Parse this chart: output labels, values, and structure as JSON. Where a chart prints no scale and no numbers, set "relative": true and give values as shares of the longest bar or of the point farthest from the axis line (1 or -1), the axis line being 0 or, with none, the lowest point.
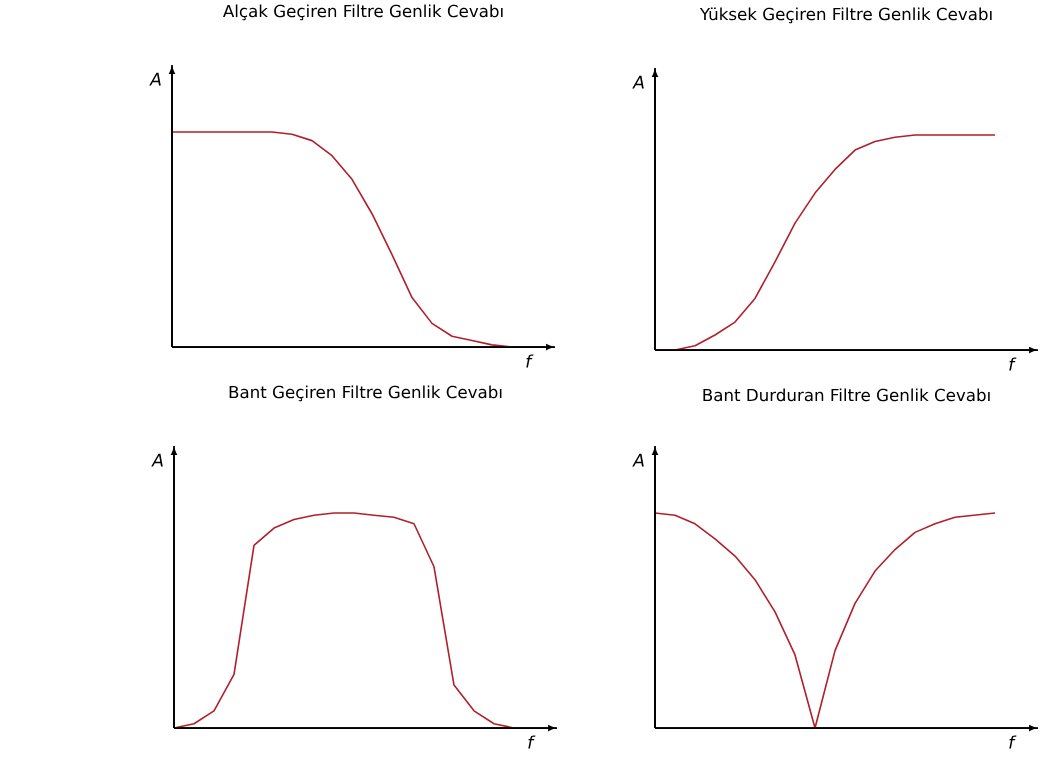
{
  "chart_data": [
    {
      "type": "line",
      "title": "Alçak Geçiren Filtre Genlik Cevabı",
      "xlabel": "f",
      "ylabel": "A",
      "relative": true,
      "categories": [
        null,
        null,
        null,
        null,
        null,
        null,
        null,
        null,
        null,
        null,
        null,
        null,
        null,
        null,
        null,
        null,
        null,
        null
      ],
      "series": [
        {
          "color": "#b0202a",
          "values": [
            1,
            1,
            1,
            1,
            1,
            1,
            0.99,
            0.96,
            0.89,
            0.78,
            0.62,
            0.43,
            0.23,
            0.11,
            0.05,
            0.03,
            0.01,
            0
          ]
        }
      ]
    },
    {
      "type": "line",
      "title": "Yüksek Geçiren Filtre Genlik Cevabı",
      "xlabel": "f",
      "ylabel": "A",
      "relative": true,
      "categories": [
        null,
        null,
        null,
        null,
        null,
        null,
        null,
        null,
        null,
        null,
        null,
        null,
        null,
        null,
        null,
        null,
        null,
        null
      ],
      "series": [
        {
          "color": "#b0202a",
          "values": [
            0,
            0,
            0.02,
            0.07,
            0.13,
            0.24,
            0.41,
            0.59,
            0.73,
            0.84,
            0.93,
            0.97,
            0.99,
            1,
            1,
            1,
            1,
            1
          ]
        }
      ]
    },
    {
      "type": "line",
      "title": "Bant Geçiren Filtre Genlik Cevabı",
      "xlabel": "f",
      "ylabel": "A",
      "relative": true,
      "categories": [
        null,
        null,
        null,
        null,
        null,
        null,
        null,
        null,
        null,
        null,
        null,
        null,
        null,
        null,
        null,
        null,
        null,
        null
      ],
      "series": [
        {
          "color": "#b0202a",
          "values": [
            0,
            0.02,
            0.08,
            0.25,
            0.85,
            0.93,
            0.97,
            0.99,
            1,
            1,
            0.99,
            0.98,
            0.95,
            0.75,
            0.2,
            0.08,
            0.02,
            0
          ]
        }
      ]
    },
    {
      "type": "line",
      "title": "Bant Durduran Filtre Genlik Cevabı",
      "xlabel": "f",
      "ylabel": "A",
      "relative": true,
      "categories": [
        null,
        null,
        null,
        null,
        null,
        null,
        null,
        null,
        null,
        null,
        null,
        null,
        null,
        null,
        null,
        null,
        null,
        null
      ],
      "series": [
        {
          "color": "#b0202a",
          "values": [
            1,
            0.99,
            0.95,
            0.88,
            0.8,
            0.69,
            0.54,
            0.34,
            0,
            0.36,
            0.58,
            0.73,
            0.83,
            0.91,
            0.95,
            0.98,
            0.99,
            1
          ]
        }
      ]
    }
  ]
}
